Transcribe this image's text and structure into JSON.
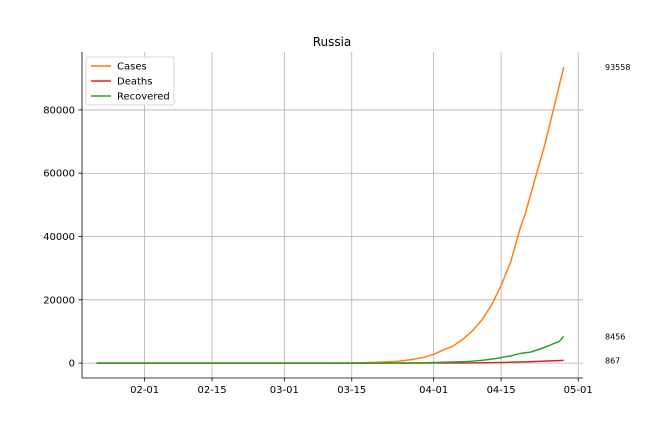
{
  "chart_data": {
    "type": "line",
    "title": "Russia",
    "xlabel": "",
    "ylabel": "",
    "x_start": "2020-01-22",
    "x_end": "2020-04-29",
    "xlim": [
      "2020-01-19",
      "2020-05-02"
    ],
    "ylim": [
      -4700,
      98300
    ],
    "x_ticks": [
      {
        "date": "2020-02-01",
        "label": "02-01"
      },
      {
        "date": "2020-02-15",
        "label": "02-15"
      },
      {
        "date": "2020-03-01",
        "label": "03-01"
      },
      {
        "date": "2020-03-15",
        "label": "03-15"
      },
      {
        "date": "2020-04-01",
        "label": "04-01"
      },
      {
        "date": "2020-04-15",
        "label": "04-15"
      },
      {
        "date": "2020-05-01",
        "label": "05-01"
      }
    ],
    "y_ticks": [
      0,
      20000,
      40000,
      60000,
      80000
    ],
    "grid": true,
    "legend_position": "top-left",
    "series": [
      {
        "name": "Cases",
        "color": "#ff7f0e",
        "end_label": "93558",
        "points": [
          [
            "2020-01-22",
            0
          ],
          [
            "2020-01-31",
            2
          ],
          [
            "2020-02-15",
            2
          ],
          [
            "2020-03-01",
            2
          ],
          [
            "2020-03-05",
            3
          ],
          [
            "2020-03-10",
            10
          ],
          [
            "2020-03-12",
            28
          ],
          [
            "2020-03-14",
            45
          ],
          [
            "2020-03-16",
            90
          ],
          [
            "2020-03-18",
            147
          ],
          [
            "2020-03-20",
            253
          ],
          [
            "2020-03-22",
            367
          ],
          [
            "2020-03-24",
            495
          ],
          [
            "2020-03-26",
            840
          ],
          [
            "2020-03-28",
            1264
          ],
          [
            "2020-03-30",
            1836
          ],
          [
            "2020-04-01",
            2777
          ],
          [
            "2020-04-03",
            4149
          ],
          [
            "2020-04-05",
            5389
          ],
          [
            "2020-04-07",
            7497
          ],
          [
            "2020-04-09",
            10131
          ],
          [
            "2020-04-11",
            13584
          ],
          [
            "2020-04-13",
            18328
          ],
          [
            "2020-04-15",
            24490
          ],
          [
            "2020-04-17",
            32008
          ],
          [
            "2020-04-19",
            42853
          ],
          [
            "2020-04-20",
            47121
          ],
          [
            "2020-04-22",
            57999
          ],
          [
            "2020-04-24",
            68622
          ],
          [
            "2020-04-26",
            80949
          ],
          [
            "2020-04-28",
            93558
          ]
        ]
      },
      {
        "name": "Deaths",
        "color": "#d62728",
        "end_label": "867",
        "points": [
          [
            "2020-01-22",
            0
          ],
          [
            "2020-03-18",
            0
          ],
          [
            "2020-03-25",
            1
          ],
          [
            "2020-04-01",
            24
          ],
          [
            "2020-04-05",
            45
          ],
          [
            "2020-04-10",
            94
          ],
          [
            "2020-04-15",
            198
          ],
          [
            "2020-04-20",
            405
          ],
          [
            "2020-04-24",
            615
          ],
          [
            "2020-04-28",
            867
          ]
        ]
      },
      {
        "name": "Recovered",
        "color": "#2ca02c",
        "end_label": "8456",
        "points": [
          [
            "2020-01-22",
            0
          ],
          [
            "2020-02-10",
            2
          ],
          [
            "2020-03-20",
            9
          ],
          [
            "2020-03-25",
            22
          ],
          [
            "2020-03-28",
            49
          ],
          [
            "2020-04-01",
            190
          ],
          [
            "2020-04-05",
            355
          ],
          [
            "2020-04-08",
            494
          ],
          [
            "2020-04-11",
            886
          ],
          [
            "2020-04-14",
            1470
          ],
          [
            "2020-04-17",
            2304
          ],
          [
            "2020-04-19",
            3057
          ],
          [
            "2020-04-20",
            3291
          ],
          [
            "2020-04-21",
            3446
          ],
          [
            "2020-04-23",
            4420
          ],
          [
            "2020-04-25",
            5568
          ],
          [
            "2020-04-26",
            6250
          ],
          [
            "2020-04-27",
            6767
          ],
          [
            "2020-04-28",
            8456
          ]
        ]
      }
    ]
  }
}
